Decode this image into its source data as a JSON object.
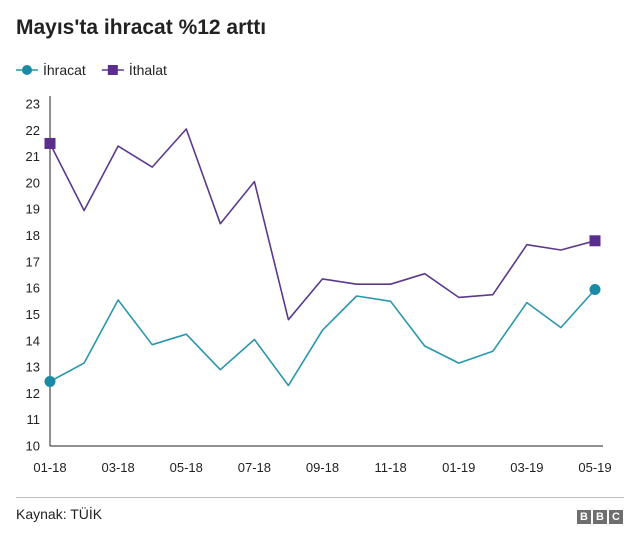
{
  "title": "Mayıs'ta ihracat %12 arttı",
  "source": "Kaynak: TÜİK",
  "logo": [
    "B",
    "B",
    "C"
  ],
  "colors": {
    "ihracat": "#2a96ad",
    "ithalat": "#5b3a8c",
    "axis": "#222222",
    "ihracat_marker": "#1a8aa5",
    "ithalat_marker": "#5b2d8c"
  },
  "chart_data": {
    "type": "line",
    "title": "Mayıs'ta ihracat %12 arttı",
    "xlabel": "",
    "ylabel": "",
    "ylim": [
      10,
      23
    ],
    "yticks": [
      10,
      11,
      12,
      13,
      14,
      15,
      16,
      17,
      18,
      19,
      20,
      21,
      22,
      23
    ],
    "x": [
      "01-18",
      "02-18",
      "03-18",
      "04-18",
      "05-18",
      "06-18",
      "07-18",
      "08-18",
      "09-18",
      "10-18",
      "11-18",
      "12-18",
      "01-19",
      "02-19",
      "03-19",
      "04-19",
      "05-19"
    ],
    "xtick_labels": [
      "01-18",
      "03-18",
      "05-18",
      "07-18",
      "09-18",
      "11-18",
      "01-19",
      "03-19",
      "05-19"
    ],
    "legend_position": "top-left",
    "grid": false,
    "series": [
      {
        "name": "İhracat",
        "key": "ihracat",
        "marker": "circle",
        "values": [
          12.45,
          13.15,
          15.55,
          13.85,
          14.25,
          12.9,
          14.05,
          12.3,
          14.4,
          15.7,
          15.5,
          13.8,
          13.15,
          13.6,
          15.45,
          14.5,
          15.95
        ]
      },
      {
        "name": "İthalat",
        "key": "ithalat",
        "marker": "square",
        "values": [
          21.5,
          18.95,
          21.4,
          20.6,
          22.05,
          18.45,
          20.05,
          14.8,
          16.35,
          16.15,
          16.15,
          16.55,
          15.65,
          15.75,
          17.65,
          17.45,
          17.8
        ]
      }
    ]
  }
}
